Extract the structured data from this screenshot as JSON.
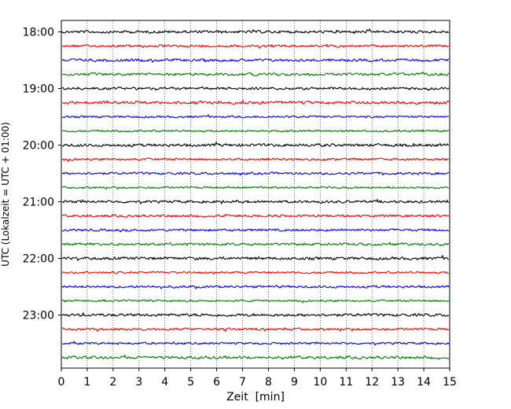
{
  "chart_data": {
    "type": "line",
    "title": "",
    "xlabel": "Zeit  [min]",
    "ylabel": "UTC (Lokalzeit = UTC + 01:00)",
    "xlim": [
      0,
      15
    ],
    "x_ticks": [
      "0",
      "1",
      "2",
      "3",
      "4",
      "5",
      "6",
      "7",
      "8",
      "9",
      "10",
      "11",
      "12",
      "13",
      "14",
      "15"
    ],
    "y_tick_labels": [
      "18:00",
      "19:00",
      "20:00",
      "21:00",
      "22:00",
      "23:00"
    ],
    "trace_interval_min": 15,
    "trace_count": 24,
    "first_trace_time": "18:00",
    "color_cycle": [
      "#000000",
      "#ff0000",
      "#0000ff",
      "#008000"
    ],
    "vertical_grid": "dotted",
    "legend": "none"
  }
}
